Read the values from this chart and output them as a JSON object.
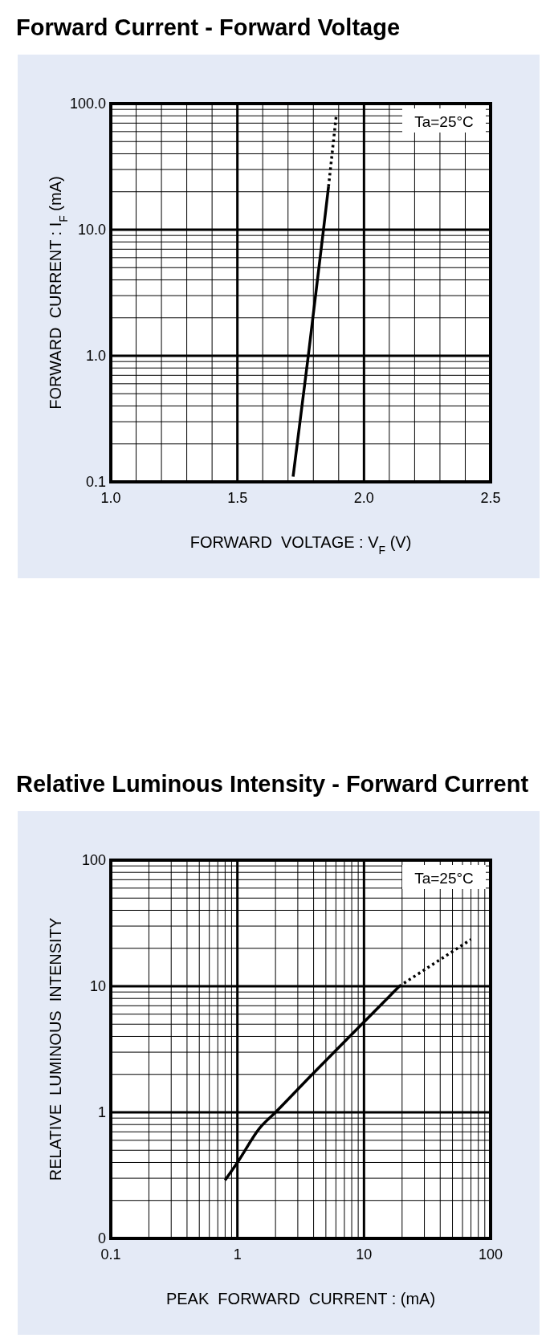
{
  "chart_data": [
    {
      "type": "line",
      "title": "Forward Current - Forward Voltage",
      "xlabel": "FORWARD  VOLTAGE : V$_{F}$ (V)",
      "ylabel": "FORWARD  CURRENT : I$_{F}$ (mA)",
      "annotations": [
        "Ta=25°C"
      ],
      "log": "y",
      "grid": true,
      "xlim": [
        1.0,
        2.5
      ],
      "ylim": [
        0.1,
        100
      ],
      "xticks": [
        {
          "value": 1.0,
          "label": "1.0"
        },
        {
          "value": 1.1,
          "label": null
        },
        {
          "value": 1.2,
          "label": null
        },
        {
          "value": 1.3,
          "label": null
        },
        {
          "value": 1.4,
          "label": null
        },
        {
          "value": 1.5,
          "label": "1.5"
        },
        {
          "value": 1.6,
          "label": null
        },
        {
          "value": 1.7,
          "label": null
        },
        {
          "value": 1.8,
          "label": null
        },
        {
          "value": 1.9,
          "label": null
        },
        {
          "value": 2.0,
          "label": "2.0"
        },
        {
          "value": 2.1,
          "label": null
        },
        {
          "value": 2.2,
          "label": null
        },
        {
          "value": 2.3,
          "label": null
        },
        {
          "value": 2.4,
          "label": null
        },
        {
          "value": 2.5,
          "label": "2.5"
        }
      ],
      "yticks": [
        {
          "value": 0.1,
          "label": "0.1"
        },
        {
          "value": 0.2,
          "label": null
        },
        {
          "value": 0.3,
          "label": null
        },
        {
          "value": 0.4,
          "label": null
        },
        {
          "value": 0.5,
          "label": null
        },
        {
          "value": 0.6,
          "label": null
        },
        {
          "value": 0.7,
          "label": null
        },
        {
          "value": 0.8,
          "label": null
        },
        {
          "value": 0.9,
          "label": null
        },
        {
          "value": 1,
          "label": "1.0"
        },
        {
          "value": 2,
          "label": null
        },
        {
          "value": 3,
          "label": null
        },
        {
          "value": 4,
          "label": null
        },
        {
          "value": 5,
          "label": null
        },
        {
          "value": 6,
          "label": null
        },
        {
          "value": 7,
          "label": null
        },
        {
          "value": 8,
          "label": null
        },
        {
          "value": 9,
          "label": null
        },
        {
          "value": 10,
          "label": "10.0"
        },
        {
          "value": 20,
          "label": null
        },
        {
          "value": 30,
          "label": null
        },
        {
          "value": 40,
          "label": null
        },
        {
          "value": 50,
          "label": null
        },
        {
          "value": 60,
          "label": null
        },
        {
          "value": 70,
          "label": null
        },
        {
          "value": 80,
          "label": null
        },
        {
          "value": 90,
          "label": null
        },
        {
          "value": 100,
          "label": "100.0"
        }
      ],
      "series": [
        {
          "color": "#000000",
          "line_style": "solid",
          "x": [
            1.72,
            1.78,
            1.84,
            1.86
          ],
          "values": [
            0.11,
            1,
            10,
            22
          ]
        },
        {
          "color": "#000000",
          "line_style": "dotted",
          "x": [
            1.86,
            1.89
          ],
          "values": [
            22,
            79
          ]
        }
      ]
    },
    {
      "type": "line",
      "title": "Relative Luminous Intensity - Forward Current",
      "xlabel": "PEAK  FORWARD  CURRENT : (mA)",
      "ylabel": "RELATIVE  LUMINOUS  INTENSITY",
      "annotations": [
        "Ta=25°C"
      ],
      "log": "xy",
      "grid": true,
      "xlim": [
        0.1,
        100
      ],
      "ylim": [
        0.1,
        100
      ],
      "xticks": [
        {
          "value": 0.1,
          "label": "0.1"
        },
        {
          "value": 0.2,
          "label": null
        },
        {
          "value": 0.3,
          "label": null
        },
        {
          "value": 0.4,
          "label": null
        },
        {
          "value": 0.5,
          "label": null
        },
        {
          "value": 0.6,
          "label": null
        },
        {
          "value": 0.7,
          "label": null
        },
        {
          "value": 0.8,
          "label": null
        },
        {
          "value": 0.9,
          "label": null
        },
        1,
        {
          "value": 2,
          "label": null
        },
        {
          "value": 3,
          "label": null
        },
        {
          "value": 4,
          "label": null
        },
        {
          "value": 5,
          "label": null
        },
        {
          "value": 6,
          "label": null
        },
        {
          "value": 7,
          "label": null
        },
        {
          "value": 8,
          "label": null
        },
        {
          "value": 9,
          "label": null
        },
        10,
        {
          "value": 20,
          "label": null
        },
        {
          "value": 30,
          "label": null
        },
        {
          "value": 40,
          "label": null
        },
        {
          "value": 50,
          "label": null
        },
        {
          "value": 60,
          "label": null
        },
        {
          "value": 70,
          "label": null
        },
        {
          "value": 80,
          "label": null
        },
        {
          "value": 90,
          "label": null
        },
        100
      ],
      "yticks": [
        {
          "value": 0.1,
          "label": "0"
        },
        {
          "value": 0.2,
          "label": null
        },
        {
          "value": 0.3,
          "label": null
        },
        {
          "value": 0.4,
          "label": null
        },
        {
          "value": 0.5,
          "label": null
        },
        {
          "value": 0.6,
          "label": null
        },
        {
          "value": 0.7,
          "label": null
        },
        {
          "value": 0.8,
          "label": null
        },
        {
          "value": 0.9,
          "label": null
        },
        1,
        {
          "value": 2,
          "label": null
        },
        {
          "value": 3,
          "label": null
        },
        {
          "value": 4,
          "label": null
        },
        {
          "value": 5,
          "label": null
        },
        {
          "value": 6,
          "label": null
        },
        {
          "value": 7,
          "label": null
        },
        {
          "value": 8,
          "label": null
        },
        {
          "value": 9,
          "label": null
        },
        10,
        {
          "value": 20,
          "label": null
        },
        {
          "value": 30,
          "label": null
        },
        {
          "value": 40,
          "label": null
        },
        {
          "value": 50,
          "label": null
        },
        {
          "value": 60,
          "label": null
        },
        {
          "value": 70,
          "label": null
        },
        {
          "value": 80,
          "label": null
        },
        {
          "value": 90,
          "label": null
        },
        100
      ],
      "series": [
        {
          "color": "#000000",
          "line_style": "solid",
          "x": [
            0.8,
            1,
            1.5,
            2,
            3.9,
            10,
            19
          ],
          "values": [
            0.29,
            0.4,
            0.75,
            1,
            2,
            5.2,
            10
          ]
        },
        {
          "color": "#000000",
          "line_style": "dotted",
          "x": [
            19,
            70
          ],
          "values": [
            10,
            23.5
          ]
        }
      ]
    }
  ]
}
